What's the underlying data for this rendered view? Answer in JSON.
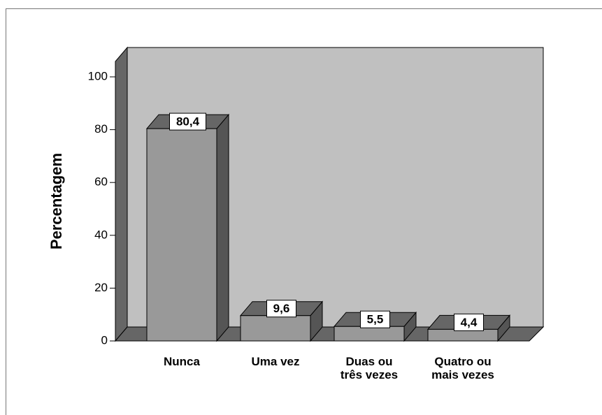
{
  "chart_data": {
    "type": "bar3d",
    "y_label": "Percentagem",
    "categories": [
      "Nunca",
      "Uma vez",
      "Duas ou\ntrês vezes",
      "Quatro ou\nmais vezes"
    ],
    "values": [
      80.4,
      9.6,
      5.5,
      4.4
    ],
    "value_labels": [
      "80,4",
      "9,6",
      "5,5",
      "4,4"
    ],
    "color": "#999999",
    "ylim": [
      0,
      100
    ],
    "yticks": [
      0,
      20,
      40,
      60,
      80,
      100
    ]
  }
}
